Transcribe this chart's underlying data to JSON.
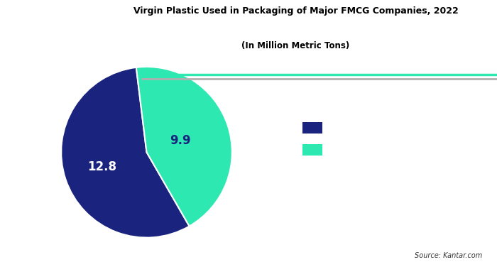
{
  "title_line1": "Virgin Plastic Used in Packaging of Major FMCG Companies, 2022",
  "title_line2": "(In Million Metric Tons)",
  "values": [
    12.8,
    9.9
  ],
  "labels": [
    "12.8",
    "9.9"
  ],
  "colors": [
    "#1a237e",
    "#2de8b0"
  ],
  "label_colors": [
    "#ffffff",
    "#1a237e"
  ],
  "startangle": 97,
  "background_color": "#ffffff",
  "text_color": "#000000",
  "accent_color": "#2de8b0",
  "shadow_color": "#b0b0b0",
  "source_text": "Source: Kantar.com",
  "label_radii": [
    0.55,
    0.42
  ]
}
